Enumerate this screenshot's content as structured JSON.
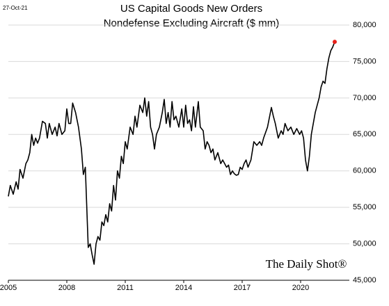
{
  "chart_data": {
    "type": "line",
    "date_stamp": "27-Oct-21",
    "title": "US Capital Goods New Orders",
    "subtitle": "Nondefense Excluding Aircraft ($ mm)",
    "watermark": "The Daily Shot®",
    "x": [
      2005.0,
      2005.1,
      2005.25,
      2005.4,
      2005.5,
      2005.6,
      2005.75,
      2005.9,
      2006.0,
      2006.1,
      2006.2,
      2006.3,
      2006.4,
      2006.5,
      2006.6,
      2006.75,
      2006.9,
      2007.0,
      2007.1,
      2007.25,
      2007.4,
      2007.5,
      2007.6,
      2007.75,
      2007.9,
      2008.0,
      2008.1,
      2008.2,
      2008.3,
      2008.45,
      2008.6,
      2008.75,
      2008.85,
      2008.95,
      2009.1,
      2009.2,
      2009.3,
      2009.4,
      2009.5,
      2009.6,
      2009.7,
      2009.8,
      2009.9,
      2010.0,
      2010.1,
      2010.2,
      2010.3,
      2010.4,
      2010.5,
      2010.6,
      2010.7,
      2010.8,
      2010.9,
      2011.0,
      2011.1,
      2011.25,
      2011.4,
      2011.5,
      2011.6,
      2011.75,
      2011.9,
      2012.0,
      2012.1,
      2012.2,
      2012.3,
      2012.4,
      2012.5,
      2012.6,
      2012.75,
      2012.9,
      2013.0,
      2013.1,
      2013.2,
      2013.3,
      2013.4,
      2013.5,
      2013.6,
      2013.75,
      2013.9,
      2014.0,
      2014.1,
      2014.2,
      2014.3,
      2014.4,
      2014.5,
      2014.6,
      2014.75,
      2014.85,
      2015.0,
      2015.1,
      2015.2,
      2015.3,
      2015.4,
      2015.5,
      2015.6,
      2015.75,
      2015.9,
      2016.0,
      2016.2,
      2016.3,
      2016.4,
      2016.5,
      2016.6,
      2016.7,
      2016.8,
      2016.9,
      2017.0,
      2017.1,
      2017.2,
      2017.3,
      2017.45,
      2017.6,
      2017.75,
      2017.9,
      2018.0,
      2018.1,
      2018.3,
      2018.5,
      2018.6,
      2018.7,
      2018.85,
      2019.0,
      2019.1,
      2019.2,
      2019.35,
      2019.5,
      2019.65,
      2019.8,
      2019.95,
      2020.05,
      2020.15,
      2020.25,
      2020.35,
      2020.45,
      2020.55,
      2020.65,
      2020.75,
      2020.85,
      2020.95,
      2021.05,
      2021.15,
      2021.25,
      2021.35,
      2021.45,
      2021.55,
      2021.65,
      2021.75
    ],
    "series": [
      {
        "name": "New Orders",
        "color": "#000000",
        "values": [
          56500,
          58000,
          56800,
          58500,
          57500,
          60200,
          59000,
          61000,
          61500,
          62500,
          65000,
          63500,
          64500,
          63800,
          64500,
          66800,
          66500,
          64500,
          66500,
          65000,
          66000,
          64800,
          66500,
          65000,
          65500,
          68500,
          66500,
          66500,
          69300,
          68000,
          66000,
          63000,
          59500,
          60500,
          49500,
          50000,
          48500,
          47200,
          50000,
          51000,
          50500,
          53000,
          52500,
          54000,
          53000,
          55500,
          54500,
          58000,
          56000,
          60000,
          59000,
          62000,
          61000,
          64000,
          63000,
          66000,
          65000,
          67500,
          66000,
          69000,
          68000,
          70000,
          67500,
          69500,
          66000,
          65000,
          63000,
          65000,
          66000,
          68000,
          69800,
          66500,
          68000,
          66000,
          69500,
          67000,
          67500,
          66000,
          68500,
          66000,
          69000,
          66500,
          67000,
          65500,
          68800,
          66000,
          69500,
          66000,
          65500,
          63000,
          64000,
          63500,
          62500,
          63000,
          61500,
          62500,
          61000,
          61500,
          60500,
          60800,
          59500,
          60000,
          59600,
          59400,
          59500,
          60500,
          60200,
          61000,
          61500,
          60500,
          61500,
          64000,
          63500,
          64000,
          63500,
          64500,
          66000,
          68700,
          67500,
          66500,
          64500,
          65500,
          65000,
          66500,
          65500,
          66000,
          65000,
          65800,
          65000,
          65500,
          64500,
          61500,
          60000,
          62000,
          65000,
          66500,
          68000,
          69000,
          70000,
          71500,
          72300,
          72000,
          74000,
          75500,
          76500,
          77000,
          77700
        ]
      }
    ],
    "end_marker_color": "#e8221b",
    "xlim": [
      2005,
      2022.5
    ],
    "xticks": [
      2005,
      2008,
      2011,
      2014,
      2017,
      2020
    ],
    "ylim": [
      45000,
      80000
    ],
    "yticks": [
      {
        "value": 45000,
        "label": "45,000"
      },
      {
        "value": 50000,
        "label": "50,000"
      },
      {
        "value": 55000,
        "label": "55,000"
      },
      {
        "value": 60000,
        "label": "60,000"
      },
      {
        "value": 65000,
        "label": "65,000"
      },
      {
        "value": 70000,
        "label": "70,000"
      },
      {
        "value": 75000,
        "label": "75,000"
      },
      {
        "value": 80000,
        "label": "80,000"
      }
    ],
    "grid": true
  }
}
